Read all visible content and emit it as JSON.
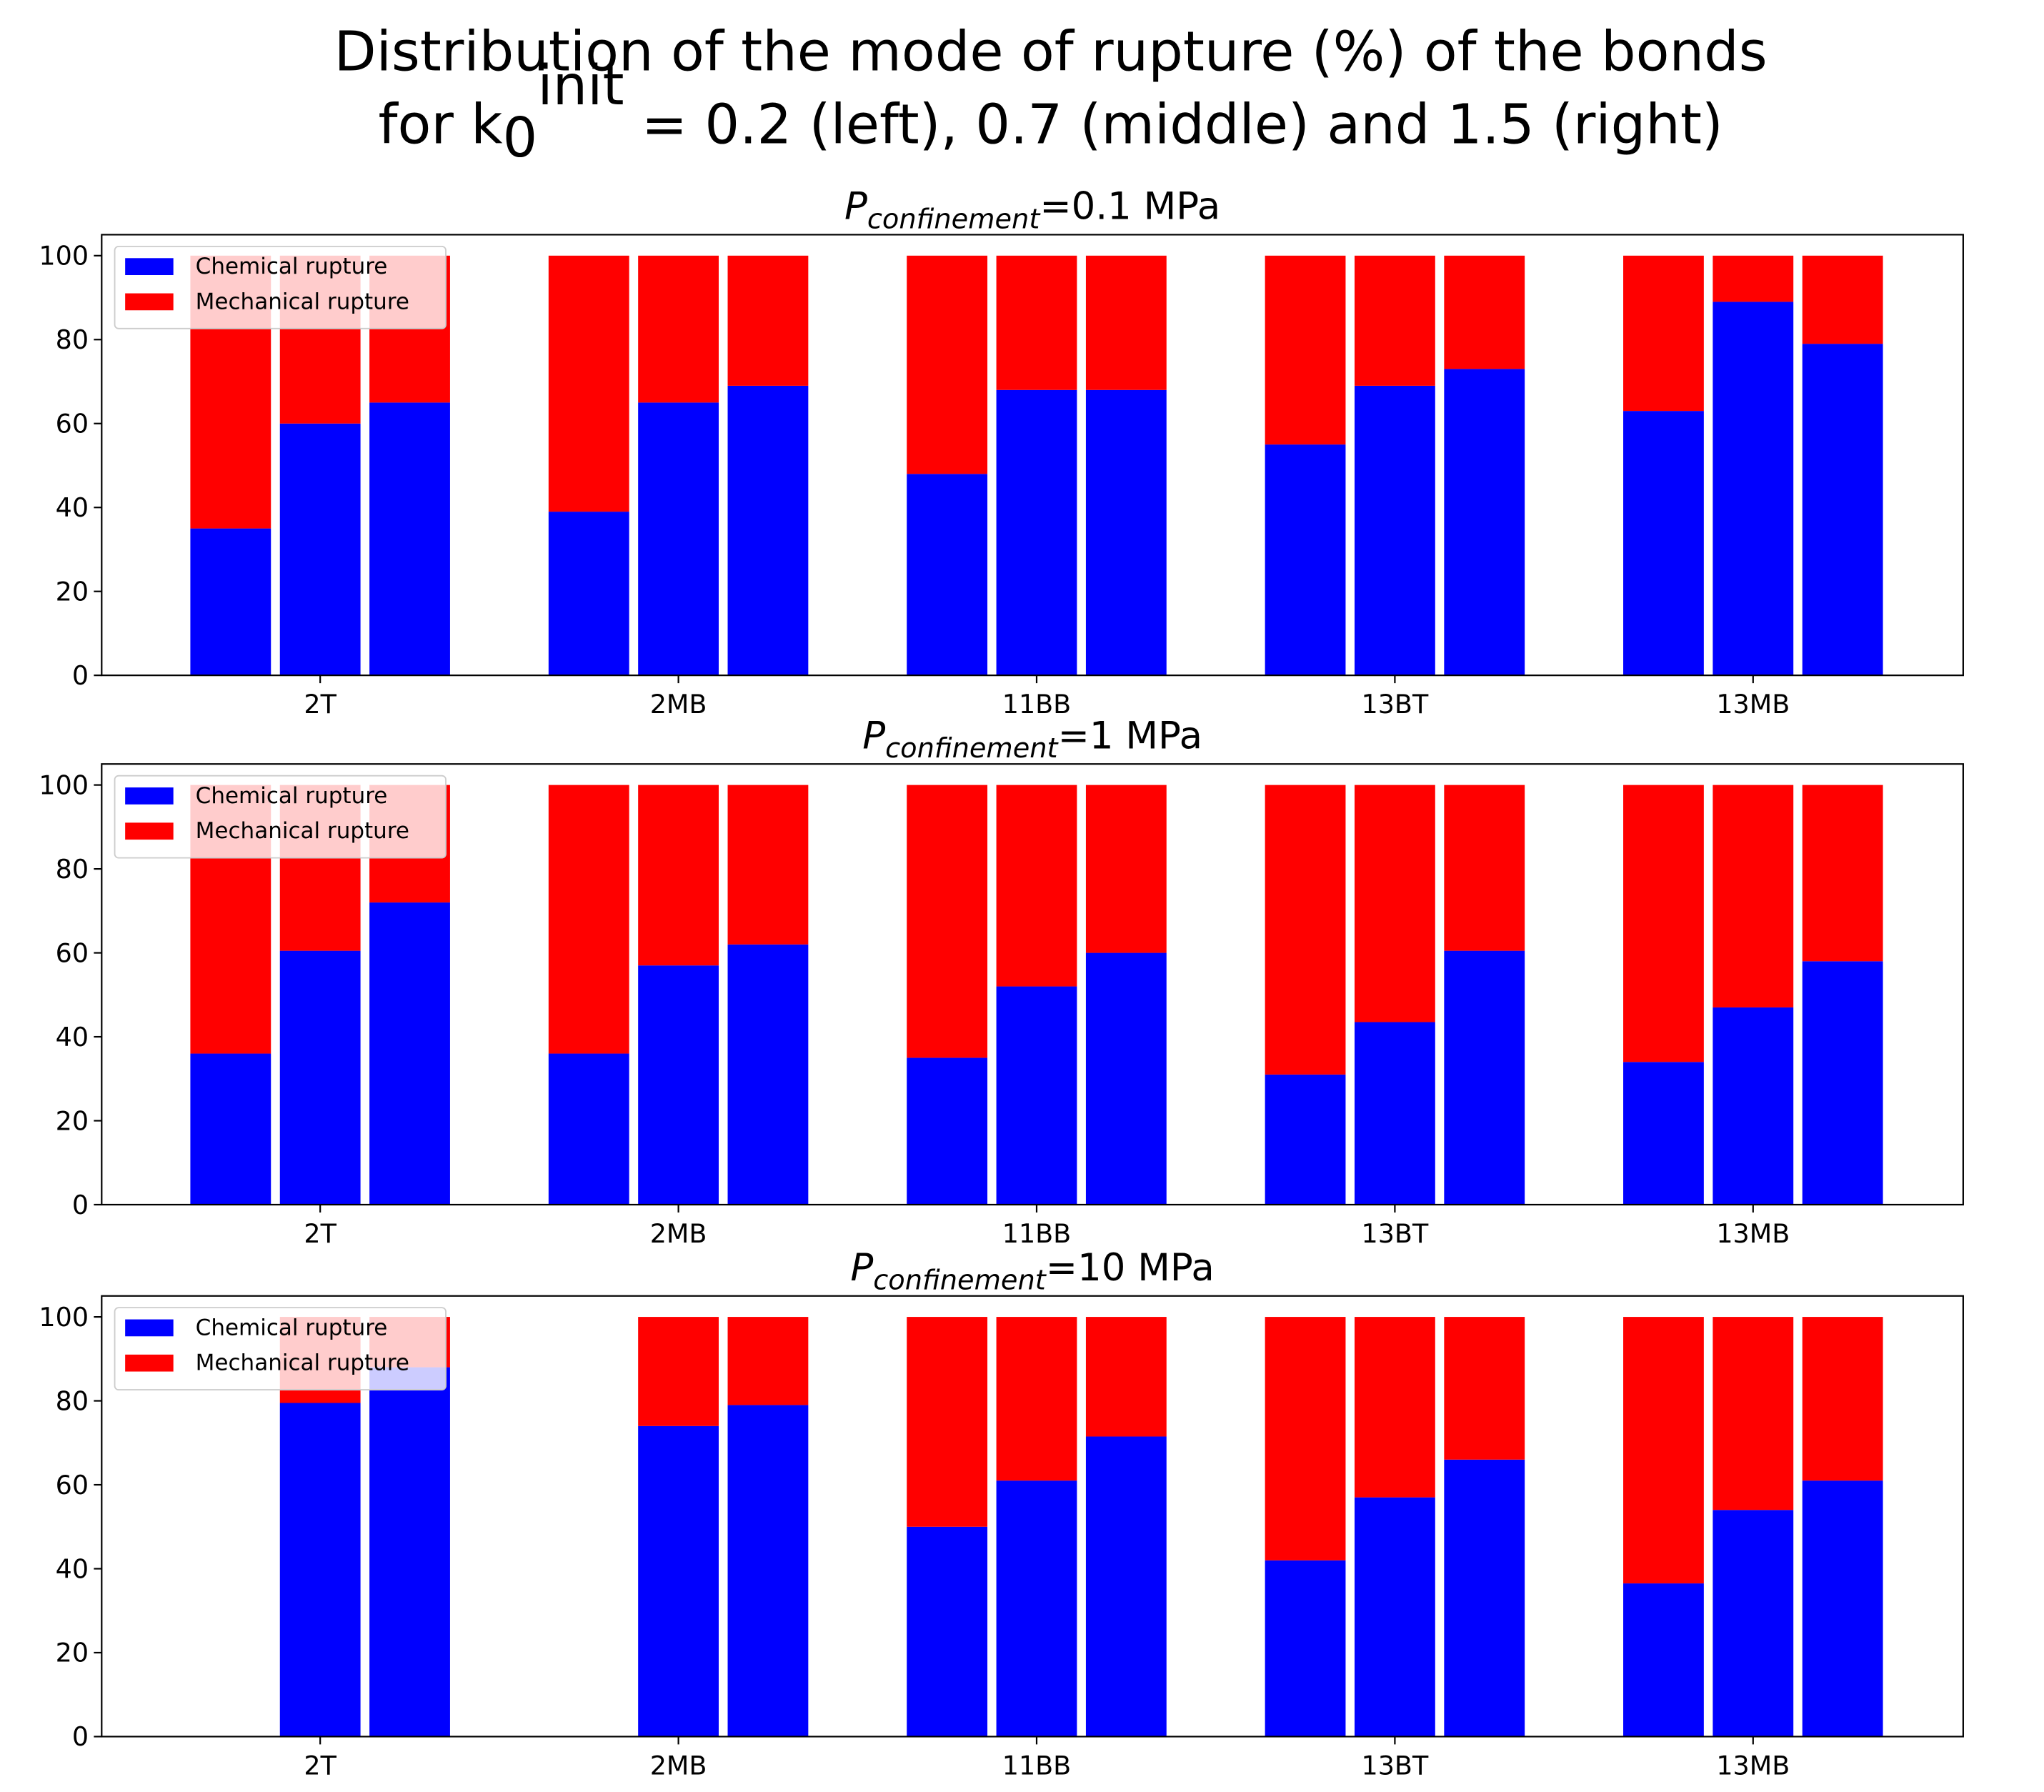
{
  "title": {
    "line1": "Distribution of the mode of rupture (%) of the bonds",
    "line2": [
      "for k",
      "0",
      "init",
      " = 0.2 (left), 0.7 (middle) and 1.5 (right)"
    ]
  },
  "chart_data": [
    {
      "type": "bar",
      "title": [
        "P",
        "confinement",
        "=0.1 MPa"
      ],
      "categories": [
        "2T",
        "2MB",
        "11BB",
        "13BT",
        "13MB"
      ],
      "series": [
        {
          "name": "Chemical rupture",
          "color": "#0000ff",
          "values": [
            [
              35,
              60,
              65
            ],
            [
              39,
              65,
              69
            ],
            [
              48,
              68,
              68
            ],
            [
              55,
              69,
              73
            ],
            [
              63,
              89,
              79
            ]
          ]
        },
        {
          "name": "Mechanical rupture",
          "color": "#ff0000",
          "values": [
            [
              65,
              40,
              35
            ],
            [
              61,
              35,
              31
            ],
            [
              52,
              32,
              32
            ],
            [
              45,
              31,
              27
            ],
            [
              37,
              11,
              21
            ]
          ]
        }
      ],
      "ylim": [
        0,
        105
      ],
      "yticks": [
        0,
        20,
        40,
        60,
        80,
        100
      ],
      "legend": "upper left"
    },
    {
      "type": "bar",
      "title": [
        "P",
        "confinement",
        "=1 MPa"
      ],
      "categories": [
        "2T",
        "2MB",
        "11BB",
        "13BT",
        "13MB"
      ],
      "series": [
        {
          "name": "Chemical rupture",
          "color": "#0000ff",
          "values": [
            [
              36,
              60.5,
              72
            ],
            [
              36,
              57,
              62
            ],
            [
              35,
              52,
              60
            ],
            [
              31,
              43.5,
              60.5
            ],
            [
              34,
              47,
              58
            ]
          ]
        },
        {
          "name": "Mechanical rupture",
          "color": "#ff0000",
          "values": [
            [
              64,
              39.5,
              28
            ],
            [
              64,
              43,
              38
            ],
            [
              65,
              48,
              40
            ],
            [
              69,
              56.5,
              39.5
            ],
            [
              66,
              53,
              42
            ]
          ]
        }
      ],
      "ylim": [
        0,
        105
      ],
      "yticks": [
        0,
        20,
        40,
        60,
        80,
        100
      ],
      "legend": "upper left"
    },
    {
      "type": "bar",
      "title": [
        "P",
        "confinement",
        "=10 MPa"
      ],
      "categories": [
        "2T",
        "2MB",
        "11BB",
        "13BT",
        "13MB"
      ],
      "series": [
        {
          "name": "Chemical rupture",
          "color": "#0000ff",
          "values": [
            [
              null,
              79.5,
              88
            ],
            [
              null,
              74,
              79
            ],
            [
              50,
              61,
              71.5
            ],
            [
              42,
              57,
              66
            ],
            [
              36.5,
              54,
              61
            ]
          ]
        },
        {
          "name": "Mechanical rupture",
          "color": "#ff0000",
          "values": [
            [
              null,
              20.5,
              12
            ],
            [
              null,
              26,
              21
            ],
            [
              50,
              39,
              28.5
            ],
            [
              58,
              43,
              34
            ],
            [
              63.5,
              46,
              39
            ]
          ]
        }
      ],
      "ylim": [
        0,
        105
      ],
      "yticks": [
        0,
        20,
        40,
        60,
        80,
        100
      ],
      "legend": "upper left"
    }
  ]
}
